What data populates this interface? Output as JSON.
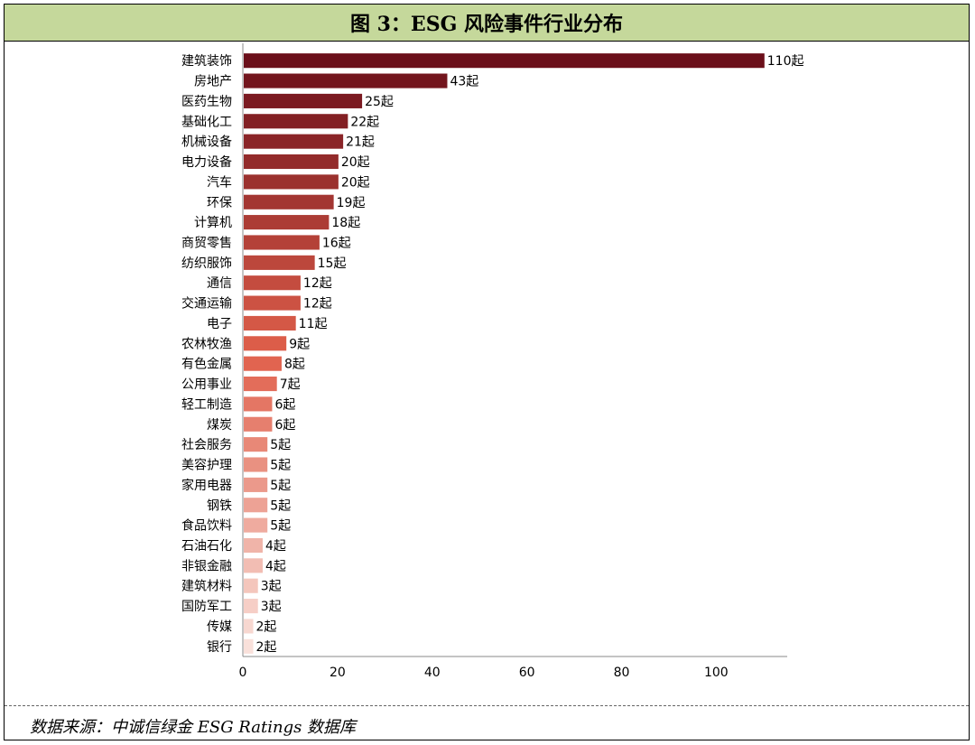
{
  "header": {
    "title": "图 3：ESG 风险事件行业分布"
  },
  "footer": {
    "source": "数据来源：中诚信绿金 ESG Ratings 数据库"
  },
  "chart_data": {
    "type": "bar",
    "orientation": "horizontal",
    "title": "",
    "xlabel": "",
    "ylabel": "",
    "xlim": [
      0,
      115
    ],
    "xticks": [
      0,
      20,
      40,
      60,
      80,
      100
    ],
    "grid": false,
    "value_suffix": "起",
    "categories": [
      "建筑装饰",
      "房地产",
      "医药生物",
      "基础化工",
      "机械设备",
      "电力设备",
      "汽车",
      "环保",
      "计算机",
      "商贸零售",
      "纺织服饰",
      "通信",
      "交通运输",
      "电子",
      "农林牧渔",
      "有色金属",
      "公用事业",
      "轻工制造",
      "煤炭",
      "社会服务",
      "美容护理",
      "家用电器",
      "钢铁",
      "食品饮料",
      "石油石化",
      "非银金融",
      "建筑材料",
      "国防军工",
      "传媒",
      "银行"
    ],
    "values": [
      110,
      43,
      25,
      22,
      21,
      20,
      20,
      19,
      18,
      16,
      15,
      12,
      12,
      11,
      9,
      8,
      7,
      6,
      6,
      5,
      5,
      5,
      5,
      5,
      4,
      4,
      3,
      3,
      2,
      2
    ],
    "color_start": "#6b0f1a",
    "color_mid": "#e0604b",
    "color_end": "#f9e0da"
  }
}
